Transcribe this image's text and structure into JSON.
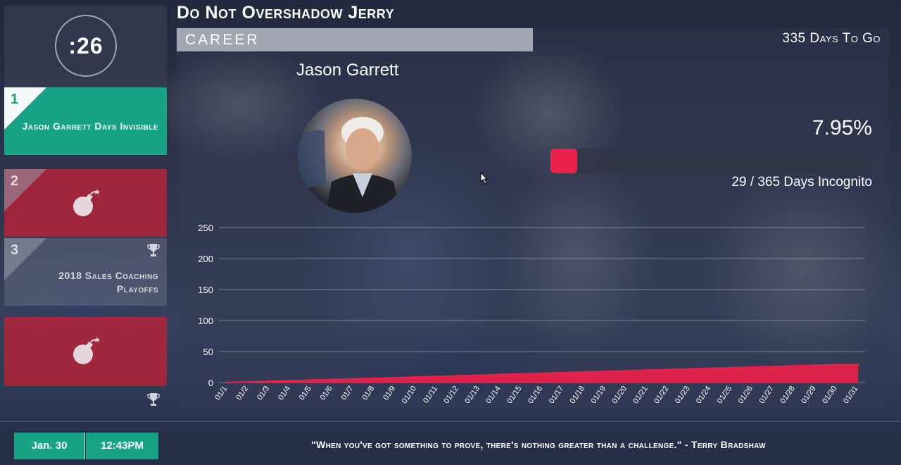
{
  "timer": {
    "value": ":26"
  },
  "leaderboard": {
    "items": [
      {
        "rank": "1",
        "label": "Jason Garrett Days Invisible",
        "style": "green"
      },
      {
        "rank": "2",
        "label": "",
        "style": "red",
        "icon": "bomb-icon"
      },
      {
        "rank": "3",
        "label": "2018 Sales Coaching Playoffs",
        "style": "gray",
        "badge": "trophy-icon"
      },
      {
        "rank": "",
        "label": "",
        "style": "red",
        "icon": "bomb-icon",
        "badge": "trophy-icon"
      }
    ]
  },
  "header": {
    "title": "Do Not Overshadow Jerry"
  },
  "panel": {
    "tab_label": "CAREER",
    "days_to_go": "335 Days To Go",
    "person_name": "Jason Garrett",
    "percent_label": "7.95%",
    "progress_fraction": 0.0795,
    "count_label": "29 / 365 Days Incognito"
  },
  "chart_data": {
    "type": "area",
    "x": [
      "01/1",
      "01/2",
      "01/3",
      "01/4",
      "01/5",
      "01/6",
      "01/7",
      "01/8",
      "01/9",
      "01/10",
      "01/11",
      "01/12",
      "01/13",
      "01/14",
      "01/15",
      "01/16",
      "01/17",
      "01/18",
      "01/19",
      "01/20",
      "01/21",
      "01/22",
      "01/23",
      "01/24",
      "01/25",
      "01/26",
      "01/27",
      "01/28",
      "01/29",
      "01/30",
      "01/31"
    ],
    "values": [
      0,
      1,
      2,
      3,
      4,
      5,
      6,
      7,
      8,
      9,
      10,
      11,
      12,
      13,
      14,
      15,
      16,
      17,
      18,
      19,
      20,
      21,
      22,
      23,
      24,
      25,
      26,
      27,
      28,
      29,
      29
    ],
    "yticks": [
      "0",
      "50",
      "100",
      "150",
      "200",
      "250"
    ],
    "ylim": [
      0,
      250
    ],
    "grid": true,
    "color": "#e8224a"
  },
  "footer": {
    "date": "Jan. 30",
    "time": "12:43PM",
    "quote": "\"When you've got something to prove, there's nothing greater than a challenge.\" - Terry Bradshaw"
  },
  "colors": {
    "accent_green": "#16a386",
    "accent_red": "#e8224a"
  }
}
